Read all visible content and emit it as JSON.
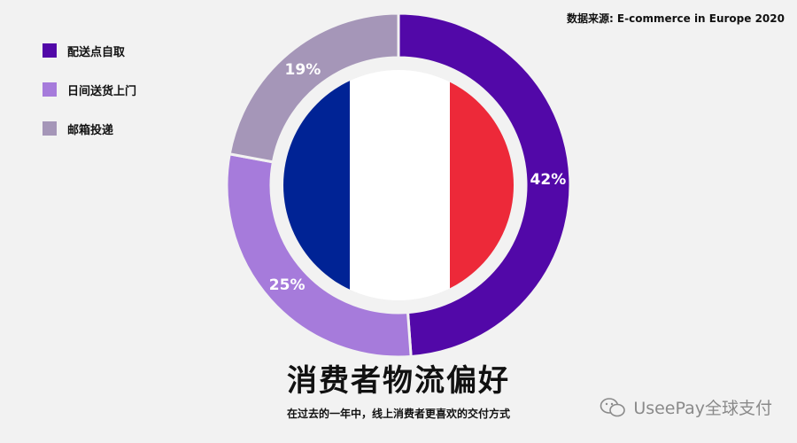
{
  "source": "数据来源: E-commerce in Europe 2020",
  "title": "消费者物流偏好",
  "subtitle": "在过去的一年中，线上消费者更喜欢的交付方式",
  "watermark": "UseePay全球支付",
  "legend": [
    {
      "label": "配送点自取",
      "color": "#5208a8"
    },
    {
      "label": "日间送货上门",
      "color": "#a67bdb"
    },
    {
      "label": "邮箱投递",
      "color": "#a596b8"
    }
  ],
  "colors": {
    "flag_blue": "#002395",
    "flag_white": "#ffffff",
    "flag_red": "#ed2939",
    "background": "#f2f2f2"
  },
  "chart_data": {
    "type": "pie",
    "variant": "donut",
    "categories": [
      "配送点自取",
      "日间送货上门",
      "邮箱投递"
    ],
    "values": [
      42,
      25,
      19
    ],
    "data_labels": [
      "42%",
      "25%",
      "19%"
    ],
    "colors": [
      "#5208a8",
      "#a67bdb",
      "#a596b8"
    ],
    "legend_position": "top-left",
    "center_image": "France flag"
  }
}
